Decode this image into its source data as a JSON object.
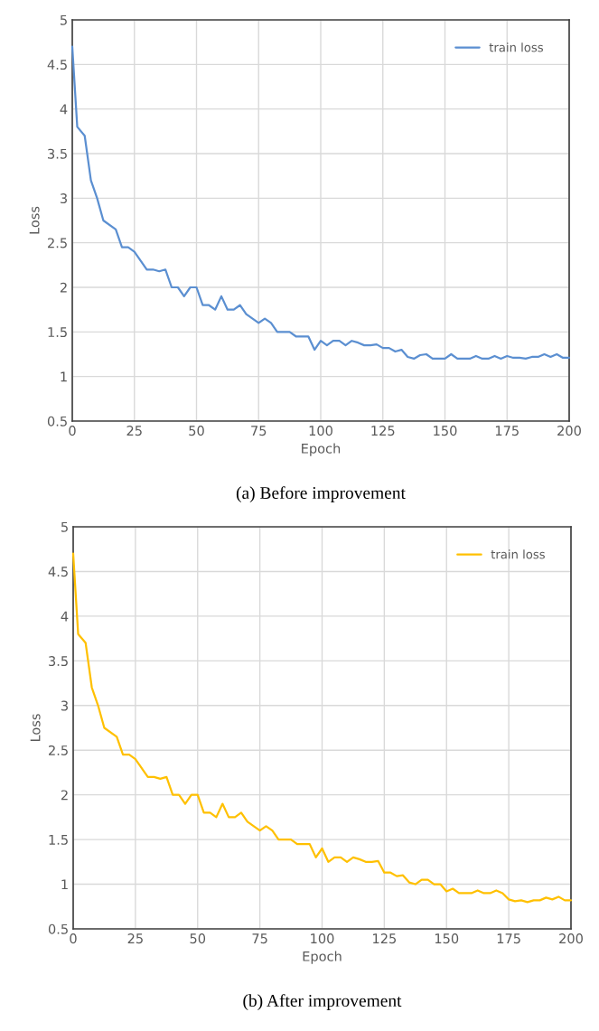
{
  "chart_data": [
    {
      "type": "line",
      "xlabel": "Epoch",
      "ylabel": "Loss",
      "xlim": [
        0,
        200
      ],
      "ylim": [
        0.5,
        5
      ],
      "xticks": [
        0,
        25,
        50,
        75,
        100,
        125,
        150,
        175,
        200
      ],
      "yticks": [
        0.5,
        1,
        1.5,
        2,
        2.5,
        3,
        3.5,
        4,
        4.5,
        5
      ],
      "grid": true,
      "legend": "top right",
      "annotations": [
        "(a) Before improvement"
      ],
      "series": [
        {
          "name": "train loss",
          "color": "#5b8fd1",
          "x": [
            0,
            2,
            5,
            7.5,
            10,
            12.5,
            17.5,
            20,
            22.5,
            25,
            30,
            32.5,
            35,
            37.5,
            40,
            42.5,
            45,
            47.5,
            50,
            52.5,
            55,
            57.5,
            60,
            62.5,
            65,
            67.5,
            70,
            75,
            77.5,
            80,
            82.5,
            87.5,
            90,
            95,
            97.5,
            100,
            102.5,
            105,
            107.5,
            110,
            112.5,
            115,
            117.5,
            120,
            122.5,
            125,
            127.5,
            130,
            132.5,
            135,
            137.5,
            140,
            142.5,
            145,
            150,
            152.5,
            155,
            160,
            162.5,
            165,
            167.5,
            170,
            172.5,
            175,
            177.5,
            180,
            182.5,
            185,
            187.5,
            190,
            192.5,
            195,
            197.5,
            200
          ],
          "values": [
            4.7,
            3.8,
            3.7,
            3.2,
            3.0,
            2.75,
            2.65,
            2.45,
            2.45,
            2.4,
            2.2,
            2.2,
            2.18,
            2.2,
            2.0,
            2.0,
            1.9,
            2.0,
            2.0,
            1.8,
            1.8,
            1.75,
            1.9,
            1.75,
            1.75,
            1.8,
            1.7,
            1.6,
            1.65,
            1.6,
            1.5,
            1.5,
            1.45,
            1.45,
            1.3,
            1.4,
            1.35,
            1.4,
            1.4,
            1.35,
            1.4,
            1.38,
            1.35,
            1.35,
            1.36,
            1.32,
            1.32,
            1.28,
            1.3,
            1.22,
            1.2,
            1.24,
            1.25,
            1.2,
            1.2,
            1.25,
            1.2,
            1.2,
            1.23,
            1.2,
            1.2,
            1.23,
            1.2,
            1.23,
            1.21,
            1.21,
            1.2,
            1.22,
            1.22,
            1.25,
            1.22,
            1.25,
            1.21,
            1.21
          ]
        }
      ]
    },
    {
      "type": "line",
      "xlabel": "Epoch",
      "ylabel": "Loss",
      "xlim": [
        0,
        200
      ],
      "ylim": [
        0.5,
        5
      ],
      "xticks": [
        0,
        25,
        50,
        75,
        100,
        125,
        150,
        175,
        200
      ],
      "yticks": [
        0.5,
        1,
        1.5,
        2,
        2.5,
        3,
        3.5,
        4,
        4.5,
        5
      ],
      "grid": true,
      "legend": "top right",
      "annotations": [
        "(b) After improvement"
      ],
      "series": [
        {
          "name": "train loss",
          "color": "#ffc000",
          "x": [
            0,
            2,
            5,
            7.5,
            10,
            12.5,
            17.5,
            20,
            22.5,
            25,
            30,
            32.5,
            35,
            37.5,
            40,
            42.5,
            45,
            47.5,
            50,
            52.5,
            55,
            57.5,
            60,
            62.5,
            65,
            67.5,
            70,
            75,
            77.5,
            80,
            82.5,
            87.5,
            90,
            95,
            97.5,
            100,
            102.5,
            105,
            107.5,
            110,
            112.5,
            115,
            117.5,
            120,
            122.5,
            125,
            127.5,
            130,
            132.5,
            135,
            137.5,
            140,
            142.5,
            145,
            147.5,
            150,
            152.5,
            155,
            160,
            162.5,
            165,
            167.5,
            170,
            172.5,
            175,
            177.5,
            180,
            182.5,
            185,
            187.5,
            190,
            192.5,
            195,
            197.5,
            200
          ],
          "values": [
            4.7,
            3.8,
            3.7,
            3.2,
            3.0,
            2.75,
            2.65,
            2.45,
            2.45,
            2.4,
            2.2,
            2.2,
            2.18,
            2.2,
            2.0,
            2.0,
            1.9,
            2.0,
            2.0,
            1.8,
            1.8,
            1.75,
            1.9,
            1.75,
            1.75,
            1.8,
            1.7,
            1.6,
            1.65,
            1.6,
            1.5,
            1.5,
            1.45,
            1.45,
            1.3,
            1.4,
            1.25,
            1.3,
            1.3,
            1.25,
            1.3,
            1.28,
            1.25,
            1.25,
            1.26,
            1.13,
            1.13,
            1.09,
            1.1,
            1.02,
            1.0,
            1.05,
            1.05,
            1.0,
            1.0,
            0.92,
            0.95,
            0.9,
            0.9,
            0.93,
            0.9,
            0.9,
            0.93,
            0.9,
            0.83,
            0.81,
            0.82,
            0.8,
            0.82,
            0.82,
            0.85,
            0.83,
            0.86,
            0.82,
            0.82
          ]
        }
      ]
    }
  ]
}
